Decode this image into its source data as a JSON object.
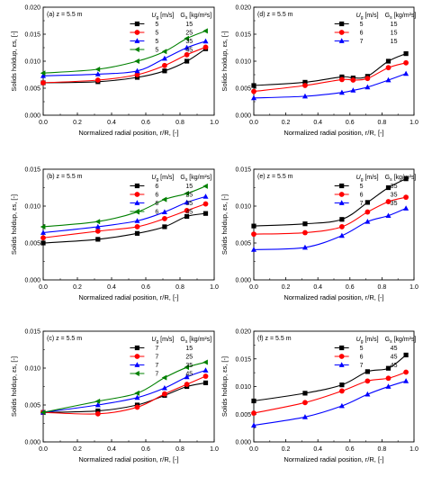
{
  "chart_data": [
    {
      "type": "line",
      "panel": "(a)",
      "condition": "z = 5.5 m",
      "xlabel": "Normalized radial position, r/R, [-]",
      "ylabel": "Solids holdup, εs, [-]",
      "xlim": [
        0,
        1.0
      ],
      "ylim": [
        0,
        0.02
      ],
      "xticks": [
        "0.0",
        "0.2",
        "0.4",
        "0.6",
        "0.8",
        "1.0"
      ],
      "yticks": [
        "0.000",
        "0.005",
        "0.010",
        "0.015",
        "0.020"
      ],
      "legend": {
        "placement": "top-right",
        "header_ug": "U",
        "header_ug_sub": "g",
        "header_ug_unit": "[m/s]",
        "header_gs": "G",
        "header_gs_sub": "s",
        "header_gs_unit": "[kg/m²s]"
      },
      "x": [
        0,
        0.32,
        0.55,
        0.71,
        0.84,
        0.95
      ],
      "series": [
        {
          "ug": "5",
          "gs": "15",
          "color": "#000000",
          "marker": "square",
          "values": [
            0.006,
            0.0062,
            0.007,
            0.0082,
            0.01,
            0.0123
          ]
        },
        {
          "ug": "5",
          "gs": "25",
          "color": "#ff0000",
          "marker": "circle",
          "values": [
            0.006,
            0.0065,
            0.0075,
            0.0092,
            0.0112,
            0.0126
          ]
        },
        {
          "ug": "5",
          "gs": "35",
          "color": "#0000ff",
          "marker": "triangle",
          "values": [
            0.0073,
            0.0076,
            0.0082,
            0.0105,
            0.0125,
            0.0137
          ]
        },
        {
          "ug": "5",
          "gs": "45",
          "color": "#008000",
          "marker": "triangle-left",
          "values": [
            0.0078,
            0.0085,
            0.01,
            0.0118,
            0.0142,
            0.0156
          ]
        }
      ]
    },
    {
      "type": "line",
      "panel": "(d)",
      "condition": "z = 5.5 m",
      "xlabel": "Normalized radial position, r/R, [-]",
      "ylabel": "Solids holdup, εs, [-]",
      "xlim": [
        0,
        1.0
      ],
      "ylim": [
        0,
        0.02
      ],
      "xticks": [
        "0.0",
        "0.2",
        "0.4",
        "0.6",
        "0.8",
        "1.0"
      ],
      "yticks": [
        "0.000",
        "0.005",
        "0.010",
        "0.015",
        "0.020"
      ],
      "legend": {
        "placement": "top-right",
        "header_ug": "U",
        "header_ug_sub": "g",
        "header_ug_unit": "[m/s]",
        "header_gs": "G",
        "header_gs_sub": "s",
        "header_gs_unit": "[kg/m²s]"
      },
      "x": [
        0,
        0.32,
        0.55,
        0.62,
        0.71,
        0.84,
        0.95
      ],
      "series": [
        {
          "ug": "5",
          "gs": "15",
          "color": "#000000",
          "marker": "square",
          "values": [
            0.0055,
            0.0061,
            0.0071,
            0.0069,
            0.0072,
            0.01,
            0.0114
          ]
        },
        {
          "ug": "6",
          "gs": "15",
          "color": "#ff0000",
          "marker": "circle",
          "values": [
            0.0044,
            0.0055,
            0.0066,
            0.0065,
            0.0068,
            0.0088,
            0.0097
          ]
        },
        {
          "ug": "7",
          "gs": "15",
          "color": "#0000ff",
          "marker": "triangle",
          "values": [
            0.0032,
            0.0035,
            0.0042,
            0.0046,
            0.0052,
            0.0065,
            0.0077
          ]
        }
      ]
    },
    {
      "type": "line",
      "panel": "(b)",
      "condition": "z = 5.5 m",
      "xlabel": "Normalized radial position, r/R, [-]",
      "ylabel": "Solids holdup, εs, [-]",
      "xlim": [
        0,
        1.0
      ],
      "ylim": [
        0,
        0.015
      ],
      "xticks": [
        "0.0",
        "0.2",
        "0.4",
        "0.6",
        "0.8",
        "1.0"
      ],
      "yticks": [
        "0.000",
        "0.005",
        "0.010",
        "0.015"
      ],
      "legend": {
        "placement": "top-right",
        "header_ug": "U",
        "header_ug_sub": "g",
        "header_ug_unit": "[m/s]",
        "header_gs": "G",
        "header_gs_sub": "s",
        "header_gs_unit": "[kg/m²s]"
      },
      "x": [
        0,
        0.32,
        0.55,
        0.71,
        0.84,
        0.95
      ],
      "series": [
        {
          "ug": "6",
          "gs": "15",
          "color": "#000000",
          "marker": "square",
          "values": [
            0.005,
            0.0055,
            0.0063,
            0.0072,
            0.0086,
            0.009
          ]
        },
        {
          "ug": "6",
          "gs": "25",
          "color": "#ff0000",
          "marker": "circle",
          "values": [
            0.0057,
            0.0066,
            0.0072,
            0.0083,
            0.0094,
            0.0103
          ]
        },
        {
          "ug": "6",
          "gs": "35",
          "color": "#0000ff",
          "marker": "triangle",
          "values": [
            0.0064,
            0.0072,
            0.008,
            0.0092,
            0.0105,
            0.0113
          ]
        },
        {
          "ug": "6",
          "gs": "45",
          "color": "#008000",
          "marker": "triangle-left",
          "values": [
            0.0072,
            0.0079,
            0.0092,
            0.0109,
            0.0117,
            0.0127
          ]
        }
      ]
    },
    {
      "type": "line",
      "panel": "(e)",
      "condition": "z = 5.5 m",
      "xlabel": "Normalized radial position, r/R, [-]",
      "ylabel": "Solids holdup, εs, [-]",
      "xlim": [
        0,
        1.0
      ],
      "ylim": [
        0,
        0.015
      ],
      "xticks": [
        "0.0",
        "0.2",
        "0.4",
        "0.6",
        "0.8",
        "1.0"
      ],
      "yticks": [
        "0.000",
        "0.005",
        "0.010",
        "0.015"
      ],
      "legend": {
        "placement": "top-right",
        "header_ug": "U",
        "header_ug_sub": "g",
        "header_ug_unit": "[m/s]",
        "header_gs": "G",
        "header_gs_sub": "s",
        "header_gs_unit": "[kg/m²s]"
      },
      "x": [
        0,
        0.32,
        0.55,
        0.71,
        0.84,
        0.95
      ],
      "series": [
        {
          "ug": "5",
          "gs": "35",
          "color": "#000000",
          "marker": "square",
          "values": [
            0.0073,
            0.0076,
            0.0082,
            0.0105,
            0.0125,
            0.0137
          ]
        },
        {
          "ug": "6",
          "gs": "35",
          "color": "#ff0000",
          "marker": "circle",
          "values": [
            0.0062,
            0.0064,
            0.0072,
            0.0092,
            0.0106,
            0.0112
          ]
        },
        {
          "ug": "7",
          "gs": "35",
          "color": "#0000ff",
          "marker": "triangle",
          "values": [
            0.0041,
            0.0044,
            0.006,
            0.0079,
            0.0087,
            0.0097
          ]
        }
      ]
    },
    {
      "type": "line",
      "panel": "(c)",
      "condition": "z = 5.5 m",
      "xlabel": "Normalized radial position, r/R, [-]",
      "ylabel": "Solids holdup, εs, [-]",
      "xlim": [
        0,
        1.0
      ],
      "ylim": [
        0,
        0.015
      ],
      "xticks": [
        "0.0",
        "0.2",
        "0.4",
        "0.6",
        "0.8",
        "1.0"
      ],
      "yticks": [
        "0.000",
        "0.005",
        "0.010",
        "0.015"
      ],
      "legend": {
        "placement": "top-right",
        "header_ug": "U",
        "header_ug_sub": "g",
        "header_ug_unit": "[m/s]",
        "header_gs": "G",
        "header_gs_sub": "s",
        "header_gs_unit": "[kg/m²s]"
      },
      "x": [
        0,
        0.32,
        0.55,
        0.71,
        0.84,
        0.95
      ],
      "series": [
        {
          "ug": "7",
          "gs": "15",
          "color": "#000000",
          "marker": "square",
          "values": [
            0.004,
            0.0042,
            0.005,
            0.0063,
            0.0075,
            0.008
          ]
        },
        {
          "ug": "7",
          "gs": "25",
          "color": "#ff0000",
          "marker": "circle",
          "values": [
            0.004,
            0.0038,
            0.0047,
            0.0065,
            0.0078,
            0.0089
          ]
        },
        {
          "ug": "7",
          "gs": "35",
          "color": "#0000ff",
          "marker": "triangle",
          "values": [
            0.004,
            0.005,
            0.006,
            0.0073,
            0.0088,
            0.0097
          ]
        },
        {
          "ug": "7",
          "gs": "45",
          "color": "#008000",
          "marker": "triangle-left",
          "values": [
            0.004,
            0.0055,
            0.0066,
            0.0087,
            0.0101,
            0.0108
          ]
        }
      ]
    },
    {
      "type": "line",
      "panel": "(f)",
      "condition": "z = 5.5 m",
      "xlabel": "Normalized radial position, r/R, [-]",
      "ylabel": "Solids holdup, εs, [-]",
      "xlim": [
        0,
        1.0
      ],
      "ylim": [
        0,
        0.02
      ],
      "xticks": [
        "0.0",
        "0.2",
        "0.4",
        "0.6",
        "0.8",
        "1.0"
      ],
      "yticks": [
        "0.000",
        "0.005",
        "0.010",
        "0.015",
        "0.020"
      ],
      "legend": {
        "placement": "top-right",
        "header_ug": "U",
        "header_ug_sub": "g",
        "header_ug_unit": "[m/s]",
        "header_gs": "G",
        "header_gs_sub": "s",
        "header_gs_unit": "[kg/m²s]"
      },
      "x": [
        0,
        0.32,
        0.55,
        0.71,
        0.84,
        0.95
      ],
      "series": [
        {
          "ug": "5",
          "gs": "45",
          "color": "#000000",
          "marker": "square",
          "values": [
            0.0074,
            0.0088,
            0.0103,
            0.0127,
            0.0133,
            0.0157
          ]
        },
        {
          "ug": "6",
          "gs": "45",
          "color": "#ff0000",
          "marker": "circle",
          "values": [
            0.0052,
            0.0071,
            0.0092,
            0.011,
            0.0115,
            0.0126
          ]
        },
        {
          "ug": "7",
          "gs": "45",
          "color": "#0000ff",
          "marker": "triangle",
          "values": [
            0.003,
            0.0045,
            0.0065,
            0.0086,
            0.01,
            0.011
          ]
        }
      ]
    }
  ]
}
